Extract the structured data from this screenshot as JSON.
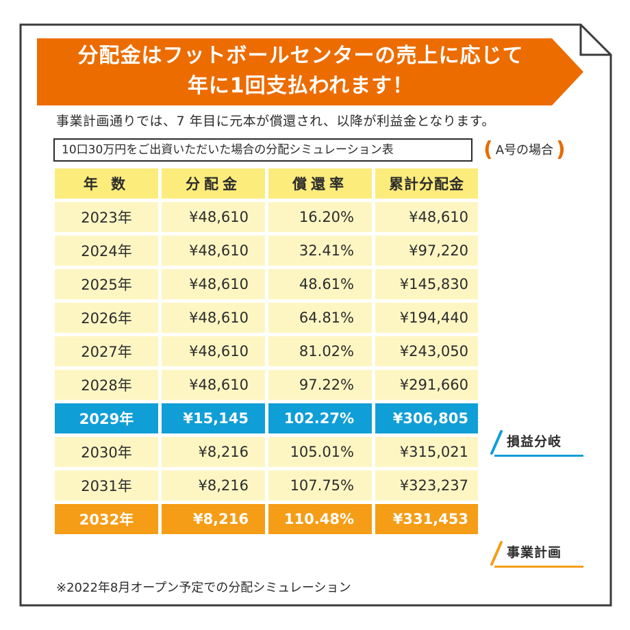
{
  "banner": {
    "line1": "分配金はフットボールセンターの売上に応じて",
    "line2": "年に1回支払われます！"
  },
  "subtitle": "事業計画通りでは、7 年目に元本が償還され、以降が利益金となります。",
  "simulation_title": "10口30万円をご出資いただいた場合の分配シミュレーション表",
  "case_label": "A号の場合",
  "table": {
    "headers": [
      "年 数",
      "分配金",
      "償還率",
      "累計分配金"
    ],
    "rows": [
      {
        "year": "2023年",
        "dividend": "¥48,610",
        "rate": "16.20%",
        "cumulative": "¥48,610"
      },
      {
        "year": "2024年",
        "dividend": "¥48,610",
        "rate": "32.41%",
        "cumulative": "¥97,220"
      },
      {
        "year": "2025年",
        "dividend": "¥48,610",
        "rate": "48.61%",
        "cumulative": "¥145,830"
      },
      {
        "year": "2026年",
        "dividend": "¥48,610",
        "rate": "64.81%",
        "cumulative": "¥194,440"
      },
      {
        "year": "2027年",
        "dividend": "¥48,610",
        "rate": "81.02%",
        "cumulative": "¥243,050"
      },
      {
        "year": "2028年",
        "dividend": "¥48,610",
        "rate": "97.22%",
        "cumulative": "¥291,660"
      },
      {
        "year": "2029年",
        "dividend": "¥15,145",
        "rate": "102.27%",
        "cumulative": "¥306,805"
      },
      {
        "year": "2030年",
        "dividend": "¥8,216",
        "rate": "105.01%",
        "cumulative": "¥315,021"
      },
      {
        "year": "2031年",
        "dividend": "¥8,216",
        "rate": "107.75%",
        "cumulative": "¥323,237"
      },
      {
        "year": "2032年",
        "dividend": "¥8,216",
        "rate": "110.48%",
        "cumulative": "¥331,453"
      }
    ]
  },
  "annotations": {
    "breakeven": "損益分岐",
    "business_plan": "事業計画"
  },
  "footnote": "※2022年8月オープン予定での分配シミュレーション",
  "colors": {
    "banner": "#ec6c00",
    "header": "#fcec7c",
    "row": "#fdf6c3",
    "breakeven_row": "#109ed6",
    "plan_row": "#f59d16",
    "border": "#3a3a3a"
  }
}
